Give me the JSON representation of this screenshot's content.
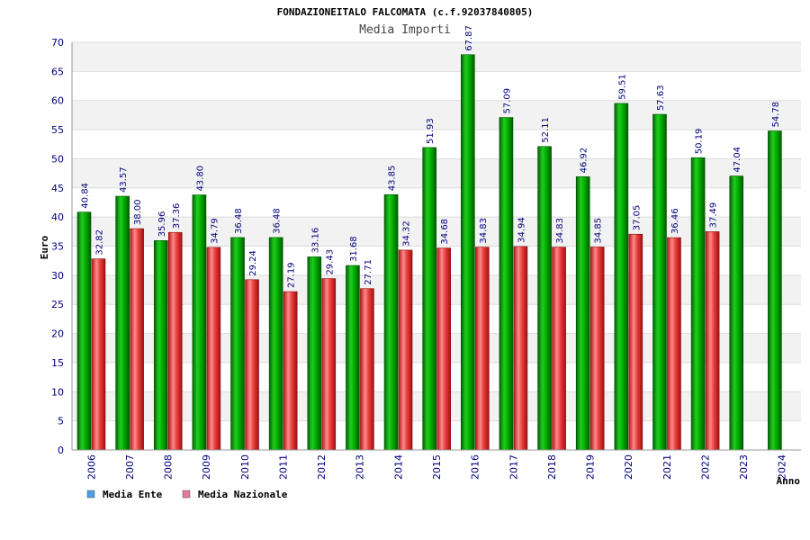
{
  "chart_data": {
    "type": "bar",
    "title": "FONDAZIONEITALO FALCOMATA (c.f.92037840805)",
    "subtitle": "Media Importi",
    "ylabel": "Euro",
    "xlabel": "Anno",
    "ylim": [
      0,
      70
    ],
    "ystep": 5,
    "grid": true,
    "legend_position": "bottom-left",
    "categories": [
      "2006",
      "2007",
      "2008",
      "2009",
      "2010",
      "2011",
      "2012",
      "2013",
      "2014",
      "2015",
      "2016",
      "2017",
      "2018",
      "2019",
      "2020",
      "2021",
      "2022",
      "2023",
      "2024"
    ],
    "series": [
      {
        "name": "Media Ente",
        "color": "#00a000",
        "legend_color": "#4f9fe6",
        "values": [
          40.84,
          43.57,
          35.96,
          43.8,
          36.48,
          36.48,
          33.16,
          31.68,
          43.85,
          51.93,
          67.87,
          57.09,
          52.11,
          46.92,
          59.51,
          57.63,
          50.19,
          47.04,
          54.78
        ],
        "labels": [
          "40.84",
          "43.57",
          "35.96",
          "43.80",
          "36.48",
          "36.48",
          "33.16",
          "31.68",
          "43.85",
          "51.93",
          "67.87",
          "57.09",
          "52.11",
          "46.92",
          "59.51",
          "57.63",
          "50.19",
          "47.04",
          "54.78"
        ]
      },
      {
        "name": "Media Nazionale",
        "color": "#e03030",
        "legend_color": "#e07aa0",
        "values": [
          32.82,
          38.0,
          37.36,
          34.79,
          29.24,
          27.19,
          29.43,
          27.71,
          34.32,
          34.68,
          34.83,
          34.94,
          34.83,
          34.85,
          37.05,
          36.46,
          37.49,
          null,
          null
        ],
        "labels": [
          "32.82",
          "38.00",
          "37.36",
          "34.79",
          "29.24",
          "27.19",
          "29.43",
          "27.71",
          "34.32",
          "34.68",
          "34.83",
          "34.94",
          "34.83",
          "34.85",
          "37.05",
          "36.46",
          "37.49",
          null,
          null
        ]
      }
    ]
  }
}
